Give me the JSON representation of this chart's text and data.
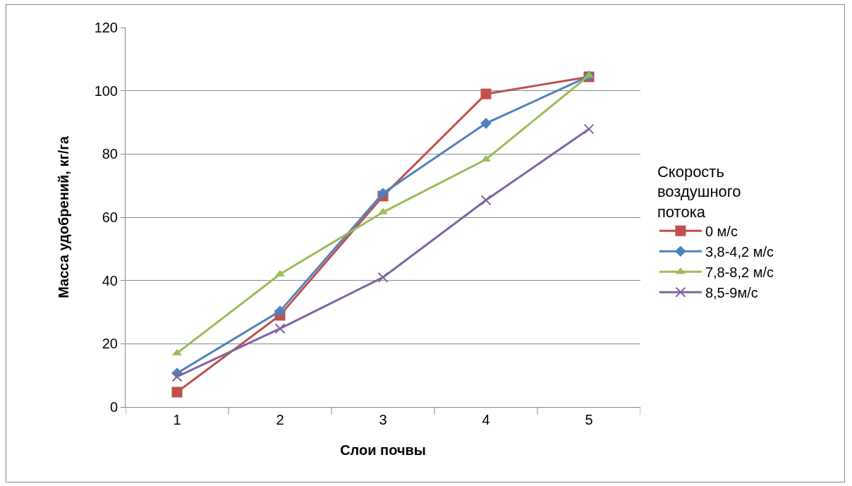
{
  "chart_data": {
    "type": "line",
    "xlabel": "Слои почвы",
    "ylabel": "Масса удобрений, кг/га",
    "legend_title": "Скорость воздушного потока",
    "categories": [
      "1",
      "2",
      "3",
      "4",
      "5"
    ],
    "series": [
      {
        "name": "0 м/с",
        "color": "#c0504d",
        "marker": "square",
        "values": [
          4.7,
          29,
          66.7,
          99,
          104.4
        ]
      },
      {
        "name": "3,8-4,2 м/с",
        "color": "#4f81bd",
        "marker": "diamond",
        "values": [
          10.7,
          30.3,
          67.6,
          89.7,
          104.6
        ]
      },
      {
        "name": "7,8-8,2 м/с",
        "color": "#9bbb59",
        "marker": "triangle",
        "values": [
          17,
          42,
          61.6,
          78.3,
          104.8
        ]
      },
      {
        "name": "8,5-9м/с",
        "color": "#8064a2",
        "marker": "cross",
        "values": [
          9.6,
          24.8,
          41,
          65.4,
          87.9
        ]
      }
    ],
    "ylim": [
      0,
      120
    ],
    "yticks": [
      0,
      20,
      40,
      60,
      80,
      100,
      120
    ],
    "grid": "y",
    "legend": "right",
    "line_style": "solid"
  }
}
